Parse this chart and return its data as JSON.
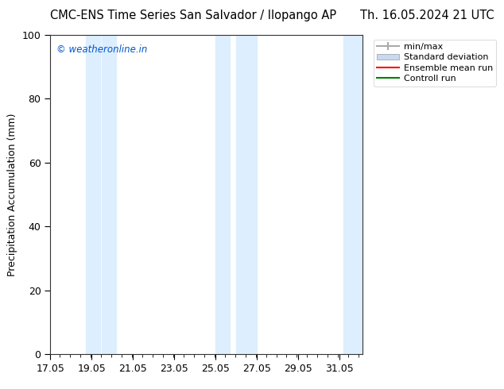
{
  "title_left": "CMC-ENS Time Series San Salvador / Ilopango AP",
  "title_right": "Th. 16.05.2024 21 UTC",
  "ylabel": "Precipitation Accumulation (mm)",
  "xlabel": "",
  "watermark": "© weatheronline.in",
  "ylim": [
    0,
    100
  ],
  "xlim_start": 17.05,
  "xlim_end": 32.2,
  "xtick_labels": [
    "17.05",
    "19.05",
    "21.05",
    "23.05",
    "25.05",
    "27.05",
    "29.05",
    "31.05"
  ],
  "xtick_positions": [
    17.05,
    19.05,
    21.05,
    23.05,
    25.05,
    27.05,
    29.05,
    31.05
  ],
  "ytick_positions": [
    0,
    20,
    40,
    60,
    80,
    100
  ],
  "shaded_bands": [
    {
      "x_start": 18.75,
      "x_end": 19.45,
      "color": "#ddeeff"
    },
    {
      "x_start": 19.55,
      "x_end": 20.25,
      "color": "#ddeeff"
    },
    {
      "x_start": 25.05,
      "x_end": 25.75,
      "color": "#ddeeff"
    },
    {
      "x_start": 26.05,
      "x_end": 27.05,
      "color": "#ddeeff"
    },
    {
      "x_start": 31.25,
      "x_end": 32.2,
      "color": "#ddeeff"
    }
  ],
  "legend_labels": [
    "min/max",
    "Standard deviation",
    "Ensemble mean run",
    "Controll run"
  ],
  "legend_colors": [
    "#aaaaaa",
    "#c8daf0",
    "#ff0000",
    "#008000"
  ],
  "background_color": "#ffffff",
  "plot_bg_color": "#ffffff",
  "title_fontsize": 10.5,
  "axis_fontsize": 9,
  "tick_fontsize": 9,
  "watermark_color": "#0055cc"
}
